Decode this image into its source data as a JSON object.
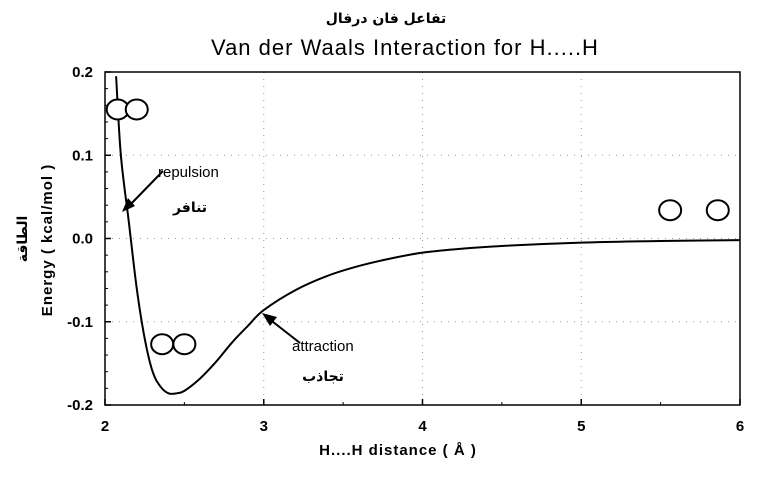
{
  "chart_data": {
    "type": "line",
    "title_arabic": "تفاعل فان درفال",
    "title": "Van der Waals Interaction for H.....H",
    "xlabel": "H....H distance ( Å )",
    "ylabel": "Energy ( kcal/mol )",
    "ylabel_arabic": "الطاقة",
    "xlim": [
      2,
      6
    ],
    "ylim": [
      -0.2,
      0.2
    ],
    "x_ticks": [
      "2",
      "3",
      "4",
      "5",
      "6"
    ],
    "y_ticks": [
      "0.2",
      "0.1",
      "0.0",
      "-0.1",
      "-0.2"
    ],
    "grid": true,
    "x": [
      2.07,
      2.1,
      2.15,
      2.2,
      2.25,
      2.3,
      2.35,
      2.4,
      2.45,
      2.5,
      2.6,
      2.7,
      2.8,
      2.9,
      3.0,
      3.2,
      3.4,
      3.6,
      3.8,
      4.0,
      4.2,
      4.5,
      5.0,
      5.5,
      6.0
    ],
    "y": [
      0.195,
      0.1,
      0.02,
      -0.06,
      -0.12,
      -0.16,
      -0.178,
      -0.186,
      -0.186,
      -0.183,
      -0.168,
      -0.148,
      -0.125,
      -0.105,
      -0.086,
      -0.062,
      -0.045,
      -0.033,
      -0.024,
      -0.017,
      -0.013,
      -0.009,
      -0.005,
      -0.003,
      -0.002
    ],
    "annotations": [
      {
        "text": "repulsion",
        "arabic": "تنافر",
        "x": 2.11,
        "y": 0.035
      },
      {
        "text": "attraction",
        "arabic": "تجاذب",
        "x": 3.02,
        "y": -0.088
      }
    ],
    "atom_pairs": [
      {
        "x": [
          2.08,
          2.2
        ],
        "y": 0.155
      },
      {
        "x": [
          2.36,
          2.5
        ],
        "y": -0.127
      },
      {
        "x": [
          5.56,
          5.86
        ],
        "y": 0.034
      }
    ]
  }
}
